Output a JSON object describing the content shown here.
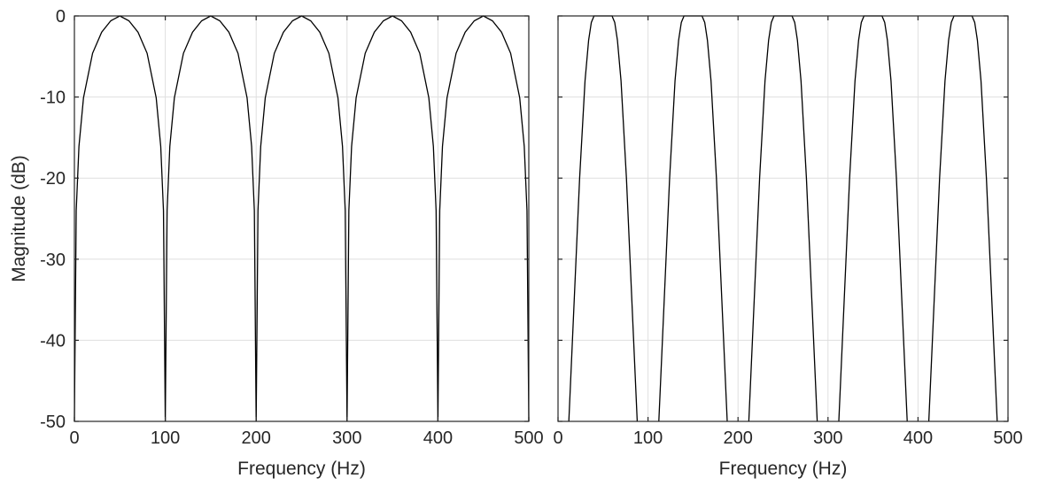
{
  "chart_data": [
    {
      "type": "line",
      "title": "",
      "xlabel": "Frequency (Hz)",
      "ylabel": "Magnitude (dB)",
      "xlim": [
        0,
        500
      ],
      "ylim": [
        -50,
        0
      ],
      "xticks": [
        "0",
        "100",
        "200",
        "300",
        "400",
        "500"
      ],
      "yticks": [
        "0",
        "-10",
        "-20",
        "-30",
        "-40",
        "-50"
      ],
      "grid": true,
      "line_color": "#000000",
      "series": [
        {
          "x": [
            0,
            2,
            5,
            10,
            20,
            30,
            40,
            50,
            60,
            70,
            80,
            90,
            95,
            98,
            100,
            102,
            105,
            110,
            120,
            130,
            140,
            150,
            160,
            170,
            180,
            190,
            195,
            198,
            200,
            202,
            205,
            210,
            220,
            230,
            240,
            250,
            260,
            270,
            280,
            290,
            295,
            298,
            300,
            302,
            305,
            310,
            320,
            330,
            340,
            350,
            360,
            370,
            380,
            390,
            395,
            398,
            400,
            402,
            405,
            410,
            420,
            430,
            440,
            450,
            460,
            470,
            480,
            490,
            495,
            498,
            500
          ],
          "y": [
            -50,
            -24.0,
            -16.1,
            -10.1,
            -4.6,
            -2.0,
            -0.6,
            0,
            -0.6,
            -2.0,
            -4.6,
            -10.1,
            -16.1,
            -24.0,
            -50,
            -24.0,
            -16.1,
            -10.1,
            -4.6,
            -2.0,
            -0.6,
            0,
            -0.6,
            -2.0,
            -4.6,
            -10.1,
            -16.1,
            -24.0,
            -50,
            -24.0,
            -16.1,
            -10.1,
            -4.6,
            -2.0,
            -0.6,
            0,
            -0.6,
            -2.0,
            -4.6,
            -10.1,
            -16.1,
            -24.0,
            -50,
            -24.0,
            -16.1,
            -10.1,
            -4.6,
            -2.0,
            -0.6,
            0,
            -0.6,
            -2.0,
            -4.6,
            -10.1,
            -16.1,
            -24.0,
            -50,
            -24.0,
            -16.1,
            -10.1,
            -4.6,
            -2.0,
            -0.6,
            0,
            -0.6,
            -2.0,
            -4.6,
            -10.1,
            -16.1,
            -24.0,
            -50
          ]
        }
      ]
    },
    {
      "type": "line",
      "title": "",
      "xlabel": "Frequency (Hz)",
      "ylabel": "",
      "xlim": [
        0,
        500
      ],
      "ylim": [
        -50,
        0
      ],
      "xticks": [
        "0",
        "100",
        "200",
        "300",
        "400",
        "500"
      ],
      "yticks": [],
      "grid": true,
      "line_color": "#000000",
      "series": [
        {
          "x": [
            12,
            18,
            24,
            30,
            34,
            37,
            40,
            60,
            63,
            66,
            70,
            76,
            82,
            88,
            112,
            118,
            124,
            130,
            134,
            137,
            140,
            160,
            163,
            166,
            170,
            176,
            182,
            188,
            212,
            218,
            224,
            230,
            234,
            237,
            240,
            260,
            263,
            266,
            270,
            276,
            282,
            288,
            312,
            318,
            324,
            330,
            334,
            337,
            340,
            360,
            363,
            366,
            370,
            376,
            382,
            388,
            412,
            418,
            424,
            430,
            434,
            437,
            440,
            460,
            463,
            466,
            470,
            476,
            482,
            488
          ],
          "y": [
            -50,
            -35,
            -20,
            -8,
            -3,
            -0.8,
            0,
            0,
            -0.8,
            -3,
            -8,
            -20,
            -35,
            -50,
            -50,
            -35,
            -20,
            -8,
            -3,
            -0.8,
            0,
            0,
            -0.8,
            -3,
            -8,
            -20,
            -35,
            -50,
            -50,
            -35,
            -20,
            -8,
            -3,
            -0.8,
            0,
            0,
            -0.8,
            -3,
            -8,
            -20,
            -35,
            -50,
            -50,
            -35,
            -20,
            -8,
            -3,
            -0.8,
            0,
            0,
            -0.8,
            -3,
            -8,
            -20,
            -35,
            -50,
            -50,
            -35,
            -20,
            -8,
            -3,
            -0.8,
            0,
            0,
            -0.8,
            -3,
            -8,
            -20,
            -35,
            -50
          ]
        }
      ]
    }
  ]
}
